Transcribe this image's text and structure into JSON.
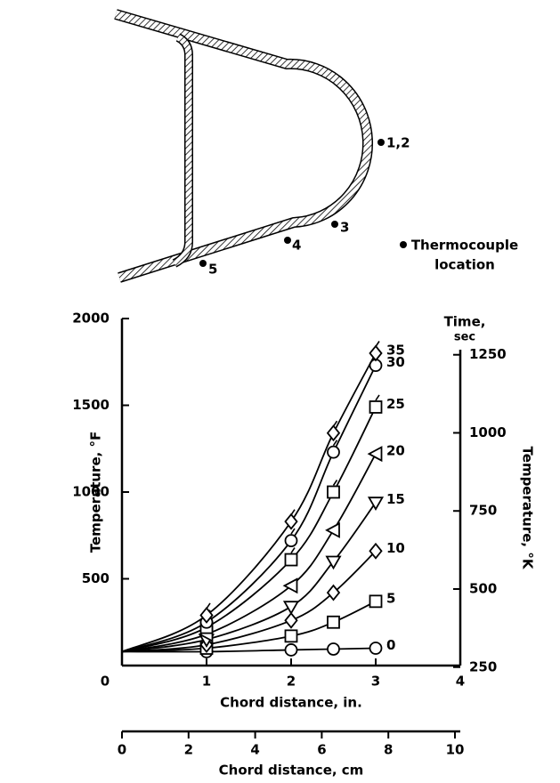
{
  "diagram": {
    "labels": [
      "1,2",
      "3",
      "4",
      "5"
    ],
    "legend_lines": [
      "Thermocouple",
      "location"
    ]
  },
  "chart_data": {
    "type": "line",
    "xlabel": "Chord distance, in.",
    "ylabel": "Temperature, °F",
    "y2label": "Temperature, °K",
    "x2label": "Chord distance, cm",
    "annotation_lines": [
      "Time,",
      "sec"
    ],
    "xlim": [
      0,
      4
    ],
    "xticks": [
      0,
      1,
      2,
      3,
      4
    ],
    "ylim": [
      0,
      2000
    ],
    "yticks": [
      500,
      1000,
      1500,
      2000
    ],
    "y2lim": [
      255,
      1366
    ],
    "y2ticks": [
      250,
      500,
      750,
      1000,
      1250
    ],
    "x2lim": [
      0,
      10.16
    ],
    "x2ticks": [
      0,
      2,
      4,
      6,
      8,
      10
    ],
    "color": "#000000",
    "x": [
      0,
      1,
      2,
      2.5,
      3
    ],
    "series": [
      {
        "name": "0",
        "marker": "circle",
        "flag": false,
        "values": [
          80,
          80,
          90,
          95,
          100
        ]
      },
      {
        "name": "5",
        "marker": "square",
        "flag": false,
        "values": [
          80,
          100,
          170,
          250,
          370
        ]
      },
      {
        "name": "10",
        "marker": "diamond",
        "flag": false,
        "values": [
          80,
          120,
          260,
          420,
          660
        ]
      },
      {
        "name": "15",
        "marker": "triangle-down",
        "flag": false,
        "values": [
          80,
          150,
          340,
          600,
          940
        ]
      },
      {
        "name": "20",
        "marker": "triangle-left",
        "flag": false,
        "values": [
          80,
          180,
          460,
          780,
          1220
        ]
      },
      {
        "name": "25",
        "marker": "square",
        "flag": true,
        "values": [
          80,
          220,
          610,
          1000,
          1490
        ]
      },
      {
        "name": "30",
        "marker": "circle",
        "flag": true,
        "values": [
          80,
          250,
          720,
          1230,
          1730
        ]
      },
      {
        "name": "35",
        "marker": "diamond",
        "flag": true,
        "values": [
          80,
          290,
          830,
          1340,
          1800
        ]
      }
    ]
  }
}
